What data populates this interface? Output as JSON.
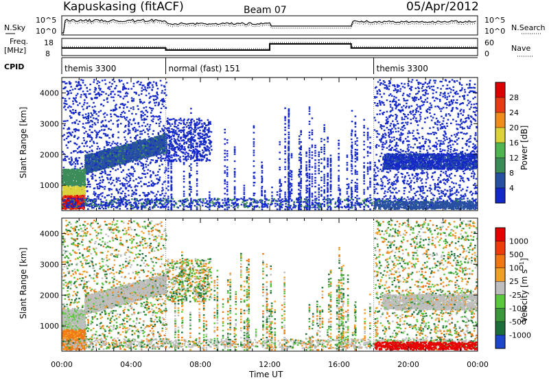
{
  "header": {
    "title": "Kapuskasing (fitACF)",
    "beam": "Beam 07",
    "date": "05/Apr/2012"
  },
  "status_panel": {
    "nsky_label": "N.Sky",
    "nsearch_label": "N.Search",
    "freq_label_1": "Freq.",
    "freq_label_2": "[MHz]",
    "nave_label": "Nave",
    "cpid_label": "CPID",
    "noise_ticks": [
      "10^5",
      "10^0"
    ],
    "freq_ticks": [
      "18",
      "8"
    ],
    "nave_ticks": [
      "60",
      "0"
    ]
  },
  "cpid_segments": [
    {
      "label": "themis 3300",
      "start": 0,
      "end": 6
    },
    {
      "label": "normal (fast) 151",
      "start": 6,
      "end": 18
    },
    {
      "label": "themis 3300",
      "start": 18,
      "end": 24
    }
  ],
  "chart_data": [
    {
      "type": "heatmap",
      "ylabel": "Slant Range [km]",
      "ylim": [
        180,
        4500
      ],
      "yticks": [
        "1000",
        "2000",
        "3000",
        "4000"
      ],
      "xlim": [
        0,
        24
      ],
      "colorbar": {
        "label": "Power [dB]",
        "ticks": [
          "4",
          "8",
          "12",
          "16",
          "20",
          "24",
          "28"
        ],
        "colors": [
          "#1428c8",
          "#2850a0",
          "#3c8c5a",
          "#50b450",
          "#dcd23c",
          "#f08c1e",
          "#e63c14",
          "#dc0000"
        ]
      },
      "features": [
        {
          "start": 0,
          "end": 1.3,
          "range": [
            300,
            1700
          ],
          "level": "high"
        },
        {
          "start": 1.3,
          "end": 6,
          "range": [
            1500,
            2700
          ],
          "level": "medium"
        },
        {
          "start": 6,
          "end": 8.6,
          "range": [
            2200,
            2900
          ],
          "level": "low"
        },
        {
          "start": 18.5,
          "end": 24,
          "range": [
            1500,
            2100
          ],
          "level": "low"
        }
      ]
    },
    {
      "type": "heatmap",
      "ylabel": "Slant Range [km]",
      "ylim": [
        180,
        4500
      ],
      "yticks": [
        "1000",
        "2000",
        "3000",
        "4000"
      ],
      "xlim": [
        0,
        24
      ],
      "colorbar": {
        "label": "Velocity [m s^-1]",
        "ticks": [
          "1000",
          "500",
          "100",
          "25",
          "-25",
          "-100",
          "-500",
          "-1000"
        ],
        "colors": [
          "#1e46c8",
          "#1e6e3c",
          "#3c963c",
          "#5ac83c",
          "#bebebe",
          "#f0a028",
          "#f07814",
          "#f03c0a",
          "#e60000"
        ]
      }
    }
  ],
  "x_axis": {
    "label": "Time UT",
    "ticks": [
      "00:00",
      "04:00",
      "08:00",
      "12:00",
      "16:00",
      "20:00",
      "00:00"
    ]
  }
}
